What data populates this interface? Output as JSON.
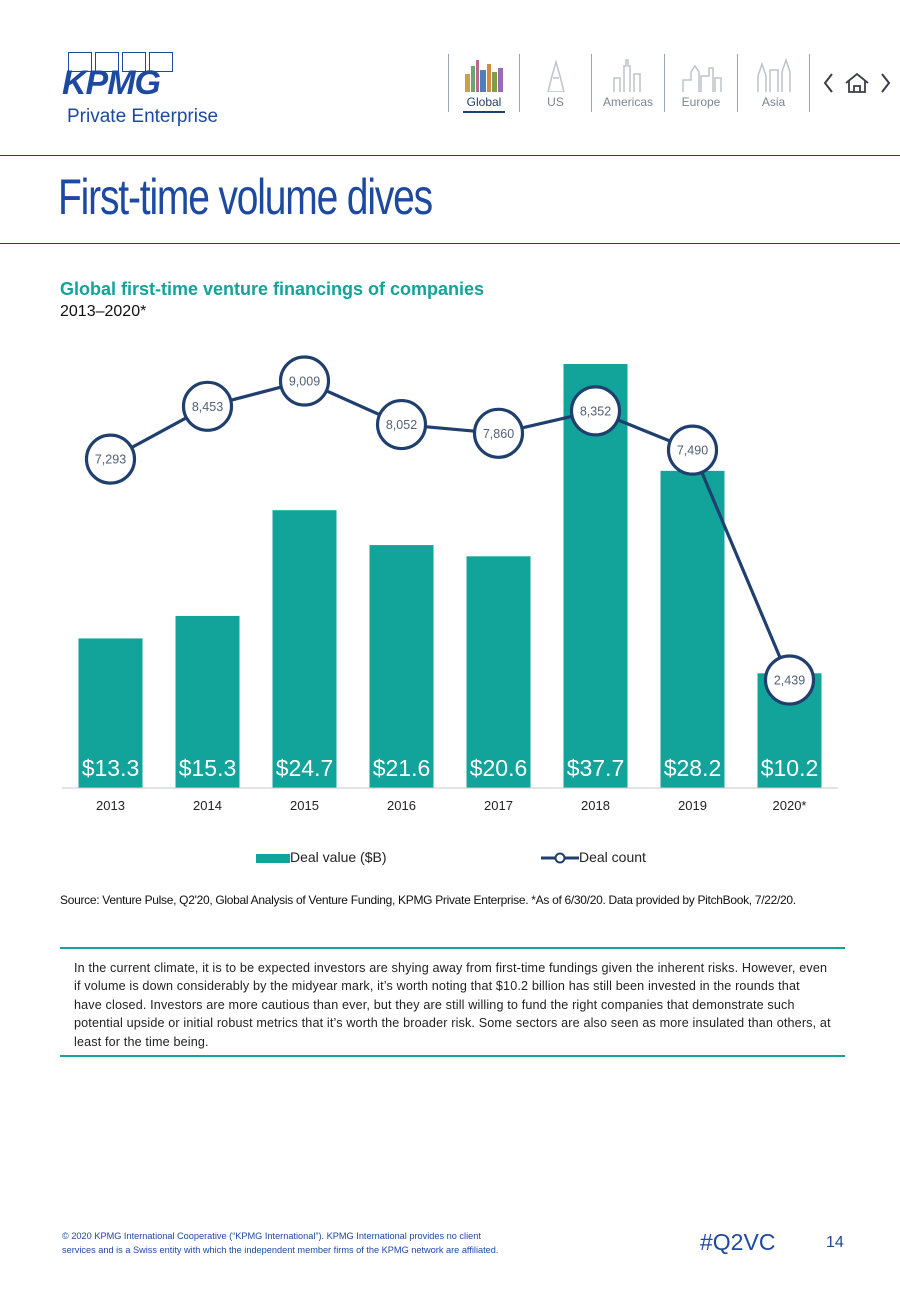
{
  "brand": {
    "logo_text": "KPMG",
    "logo_sub": "Private Enterprise",
    "primary": "#1e49a0",
    "teal": "#12a39a",
    "navy": "#1f3f6e"
  },
  "nav": {
    "items": [
      {
        "label": "Global",
        "active": true
      },
      {
        "label": "US",
        "active": false
      },
      {
        "label": "Americas",
        "active": false
      },
      {
        "label": "Europe",
        "active": false
      },
      {
        "label": "Asia",
        "active": false
      }
    ]
  },
  "page": {
    "title": "First-time volume dives",
    "number": "14",
    "hashtag": "#Q2VC"
  },
  "chart_data": {
    "type": "bar",
    "title": "Global first-time venture financings of companies",
    "subtitle": "2013–2020*",
    "categories": [
      "2013",
      "2014",
      "2015",
      "2016",
      "2017",
      "2018",
      "2019",
      "2020*"
    ],
    "series": [
      {
        "name": "Deal value ($B)",
        "type": "bar",
        "values": [
          13.3,
          15.3,
          24.7,
          21.6,
          20.6,
          37.7,
          28.2,
          10.2
        ],
        "labels": [
          "$13.3",
          "$15.3",
          "$24.7",
          "$21.6",
          "$20.6",
          "$37.7",
          "$28.2",
          "$10.2"
        ],
        "color": "#12a39a"
      },
      {
        "name": "Deal count",
        "type": "line",
        "values": [
          7293,
          8453,
          9009,
          8052,
          7860,
          8352,
          7490,
          2439
        ],
        "labels": [
          "7,293",
          "8,453",
          "9,009",
          "8,052",
          "7,860",
          "8,352",
          "7,490",
          "2,439"
        ],
        "color": "#1f3f6e"
      }
    ],
    "legend": [
      "Deal value ($B)",
      "Deal count"
    ],
    "legend_position": "bottom"
  },
  "source": "Source: Venture Pulse, Q2'20, Global Analysis of Venture Funding, KPMG Private Enterprise. *As of 6/30/20. Data provided by PitchBook, 7/22/20.",
  "body_text": "In the current climate, it is to be expected investors are shying away from first-time fundings given the inherent risks. However, even if volume is down considerably by the midyear mark, it’s worth noting that $10.2 billion has still been invested in the rounds that have closed. Investors are more cautious than ever, but they are still willing to fund the right companies that demonstrate such potential upside or initial robust metrics that it’s worth the broader risk. Some sectors are also seen as more insulated than others, at least for the time being.",
  "footer": {
    "line1": "© 2020 KPMG International Cooperative (“KPMG International”). KPMG International provides no client",
    "line2": "services and is a Swiss entity with which the independent member firms of the KPMG network are affiliated."
  }
}
